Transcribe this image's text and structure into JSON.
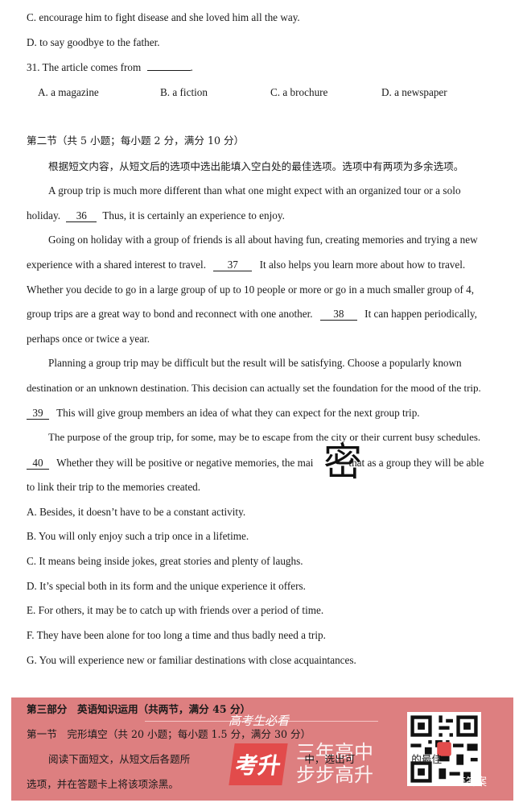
{
  "q30": {
    "option_c": "C. encourage him to fight disease and she loved him all the way.",
    "option_d": "D. to say goodbye to the father."
  },
  "q31": {
    "stem": "31. The article comes from",
    "blank": "",
    "end": ".",
    "options": [
      "A. a magazine",
      "B. a fiction",
      "C. a brochure",
      "D. a newspaper"
    ]
  },
  "section2": {
    "header": "第二节（共 5 小题；每小题 2 分，满分 10 分）",
    "instruction": "根据短文内容，从短文后的选项中选出能填入空白处的最佳选项。选项中有两项为多余选项。"
  },
  "passage": {
    "p1_l1": "A group trip is much more different than what one might expect with an organized tour or a solo",
    "p1_l2_a": "holiday.",
    "b36": "36",
    "p1_l2_b": "Thus, it is certainly an experience to enjoy.",
    "p2_l1": "Going on holiday with a group of friends is all about having fun, creating memories and trying a new",
    "p2_l2_a": "experience with a shared interest to travel.",
    "b37": "37",
    "p2_l2_b": "It also helps you learn more about how to travel.",
    "p2_l3": "Whether you decide to go in a large group of up to 10 people or more or go in a much smaller group of 4,",
    "p2_l4_a": "group trips are a great way to bond and reconnect with one another.",
    "b38": "38",
    "p2_l4_b": "It can happen periodically,",
    "p2_l5": "perhaps once or twice a year.",
    "p3_l1": "Planning a group trip may be difficult but the result will be satisfying. Choose a popularly known",
    "p3_l2": "destination or an unknown destination. This decision can actually set the foundation for the mood of the trip.",
    "b39": "39",
    "p3_l3": "This will give group members an idea of what they can expect for the next group trip.",
    "p4_l1": "The purpose of the group trip, for some, may be to escape from the city or their current busy schedules.",
    "b40": "40",
    "p4_l2_a": "Whether they will be positive or negative memories, the mai",
    "p4_l2_b": "that as a group they will be able",
    "p4_l3": "to link their trip to the memories created."
  },
  "watermark_char": "密",
  "choices": [
    "A. Besides, it doesn’t have to be a constant activity.",
    "B. You will only enjoy such a trip once in a lifetime.",
    "C. It means being inside jokes, great stories and plenty of laughs.",
    "D. It’s special both in its form and the unique experience it offers.",
    "E. For others, it may be to catch up with friends over a period of time.",
    "F. They have been alone for too long a time and thus badly need a trip.",
    "G. You will experience new or familiar destinations with close acquaintances."
  ],
  "part3": {
    "header": "第三部分　英语知识运用（共两节，满分 45 分）",
    "section1": "第一节　完形填空（共 20 小题；每小题 1.5 分，满分 30 分）",
    "instr_l1_a": "阅读下面短文，从短文后各题所",
    "instr_l1_b": "中，选出可",
    "instr_l1_c": "的最佳",
    "instr_l2": "选项，并在答题卡上将该项涂黑。"
  },
  "ad": {
    "hint": "高考生必看",
    "logo": "考升",
    "slogan_l1": "三年高中",
    "slogan_l2": "步步高升",
    "qr_label": "获答案",
    "banner_color": "#dd7f80",
    "logo_color": "#e24b4b"
  }
}
